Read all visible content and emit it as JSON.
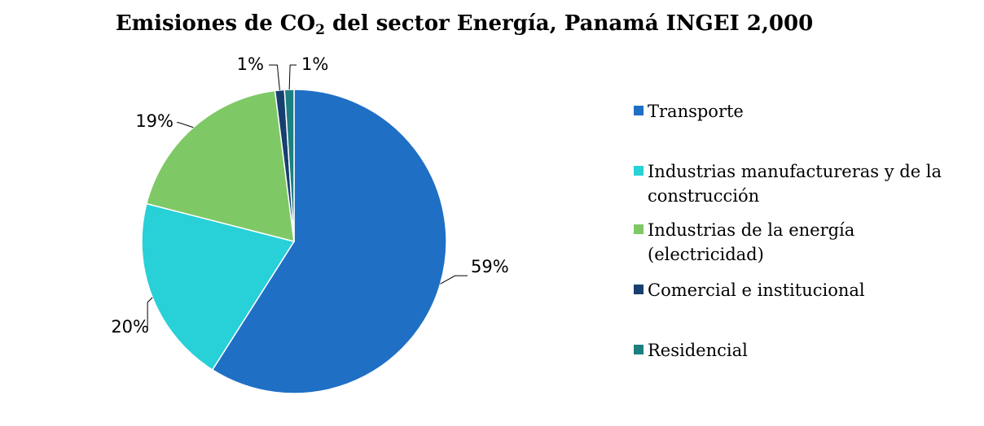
{
  "chart_data": {
    "type": "pie",
    "title_main": "Emisiones de CO",
    "title_sub": "2",
    "title_rest": " del sector Energía, Panamá INGEI 2,000",
    "slices": [
      {
        "name": "Transporte",
        "value": 59,
        "label": "59%",
        "color": "#1f6fc5"
      },
      {
        "name": "Industrias manufactureras y de la construcción",
        "value": 20,
        "label": "20%",
        "color": "#28d0d8"
      },
      {
        "name": "Industrias de la energía (electricidad)",
        "value": 19,
        "label": "19%",
        "color": "#7fc866"
      },
      {
        "name": "Comercial e institucional",
        "value": 1,
        "label": "1%",
        "color": "#173f6f"
      },
      {
        "name": "Residencial",
        "value": 1,
        "label": "1%",
        "color": "#1c7f80"
      }
    ],
    "legend_position": "right"
  }
}
